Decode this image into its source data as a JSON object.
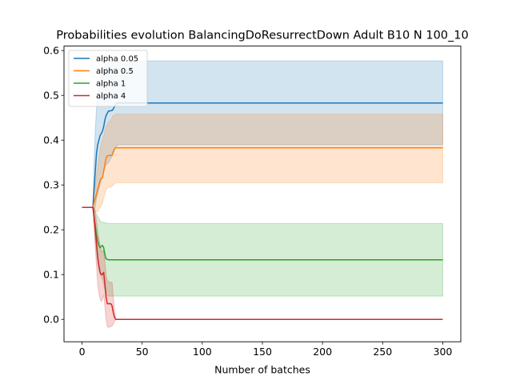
{
  "chart_data": {
    "type": "line",
    "title": "Probabilities evolution BalancingDoResurrectDown Adult B10 N 100_10",
    "xlabel": "Number of batches",
    "ylabel": "",
    "xlim": [
      -15,
      315
    ],
    "ylim": [
      -0.05,
      0.61
    ],
    "xticks": [
      0,
      50,
      100,
      150,
      200,
      250,
      300
    ],
    "yticks": [
      0.0,
      0.1,
      0.2,
      0.3,
      0.4,
      0.5,
      0.6
    ],
    "ytick_labels": [
      "0.0",
      "0.1",
      "0.2",
      "0.3",
      "0.4",
      "0.5",
      "0.6"
    ],
    "grid": false,
    "legend_position": "top-left",
    "series": [
      {
        "name": "alpha 0.05",
        "color": "#1f77b4",
        "mean": [
          [
            0,
            0.25
          ],
          [
            9,
            0.25
          ],
          [
            10,
            0.29
          ],
          [
            11,
            0.33
          ],
          [
            12,
            0.37
          ],
          [
            13,
            0.39
          ],
          [
            14,
            0.4
          ],
          [
            15,
            0.41
          ],
          [
            16,
            0.415
          ],
          [
            17,
            0.42
          ],
          [
            18,
            0.43
          ],
          [
            19,
            0.445
          ],
          [
            20,
            0.455
          ],
          [
            21,
            0.46
          ],
          [
            22,
            0.465
          ],
          [
            23,
            0.465
          ],
          [
            24,
            0.466
          ],
          [
            25,
            0.466
          ],
          [
            26,
            0.47
          ],
          [
            27,
            0.475
          ],
          [
            28,
            0.48
          ],
          [
            29,
            0.483
          ],
          [
            30,
            0.483
          ],
          [
            300,
            0.483
          ]
        ],
        "upper": [
          [
            0,
            0.25
          ],
          [
            9,
            0.25
          ],
          [
            10,
            0.35
          ],
          [
            11,
            0.42
          ],
          [
            12,
            0.47
          ],
          [
            13,
            0.5
          ],
          [
            14,
            0.52
          ],
          [
            15,
            0.535
          ],
          [
            16,
            0.545
          ],
          [
            17,
            0.552
          ],
          [
            18,
            0.56
          ],
          [
            19,
            0.565
          ],
          [
            20,
            0.57
          ],
          [
            22,
            0.573
          ],
          [
            25,
            0.575
          ],
          [
            28,
            0.577
          ],
          [
            300,
            0.577
          ]
        ],
        "lower": [
          [
            0,
            0.25
          ],
          [
            9,
            0.25
          ],
          [
            10,
            0.24
          ],
          [
            11,
            0.25
          ],
          [
            12,
            0.27
          ],
          [
            13,
            0.28
          ],
          [
            14,
            0.29
          ],
          [
            15,
            0.3
          ],
          [
            16,
            0.31
          ],
          [
            17,
            0.32
          ],
          [
            18,
            0.33
          ],
          [
            19,
            0.34
          ],
          [
            20,
            0.345
          ],
          [
            22,
            0.35
          ],
          [
            24,
            0.36
          ],
          [
            26,
            0.37
          ],
          [
            28,
            0.385
          ],
          [
            30,
            0.39
          ],
          [
            300,
            0.39
          ]
        ]
      },
      {
        "name": "alpha 0.5",
        "color": "#ff7f0e",
        "mean": [
          [
            0,
            0.25
          ],
          [
            9,
            0.25
          ],
          [
            10,
            0.26
          ],
          [
            11,
            0.27
          ],
          [
            12,
            0.28
          ],
          [
            13,
            0.29
          ],
          [
            14,
            0.3
          ],
          [
            15,
            0.31
          ],
          [
            16,
            0.315
          ],
          [
            17,
            0.316
          ],
          [
            18,
            0.33
          ],
          [
            19,
            0.345
          ],
          [
            20,
            0.36
          ],
          [
            21,
            0.365
          ],
          [
            23,
            0.366
          ],
          [
            25,
            0.366
          ],
          [
            26,
            0.375
          ],
          [
            27,
            0.38
          ],
          [
            28,
            0.383
          ],
          [
            300,
            0.383
          ]
        ],
        "upper": [
          [
            0,
            0.25
          ],
          [
            9,
            0.25
          ],
          [
            10,
            0.28
          ],
          [
            11,
            0.3
          ],
          [
            12,
            0.32
          ],
          [
            13,
            0.34
          ],
          [
            14,
            0.36
          ],
          [
            15,
            0.38
          ],
          [
            16,
            0.395
          ],
          [
            17,
            0.4
          ],
          [
            18,
            0.41
          ],
          [
            19,
            0.42
          ],
          [
            20,
            0.43
          ],
          [
            22,
            0.44
          ],
          [
            24,
            0.445
          ],
          [
            26,
            0.455
          ],
          [
            28,
            0.458
          ],
          [
            300,
            0.458
          ]
        ],
        "lower": [
          [
            0,
            0.25
          ],
          [
            9,
            0.25
          ],
          [
            10,
            0.24
          ],
          [
            11,
            0.24
          ],
          [
            12,
            0.24
          ],
          [
            13,
            0.24
          ],
          [
            14,
            0.245
          ],
          [
            15,
            0.25
          ],
          [
            16,
            0.255
          ],
          [
            17,
            0.26
          ],
          [
            18,
            0.27
          ],
          [
            19,
            0.28
          ],
          [
            20,
            0.29
          ],
          [
            22,
            0.295
          ],
          [
            24,
            0.295
          ],
          [
            26,
            0.3
          ],
          [
            28,
            0.305
          ],
          [
            300,
            0.305
          ]
        ]
      },
      {
        "name": "alpha 1",
        "color": "#2ca02c",
        "mean": [
          [
            0,
            0.25
          ],
          [
            9,
            0.25
          ],
          [
            10,
            0.23
          ],
          [
            11,
            0.21
          ],
          [
            12,
            0.19
          ],
          [
            13,
            0.175
          ],
          [
            14,
            0.165
          ],
          [
            15,
            0.16
          ],
          [
            16,
            0.163
          ],
          [
            17,
            0.165
          ],
          [
            18,
            0.16
          ],
          [
            19,
            0.145
          ],
          [
            20,
            0.135
          ],
          [
            22,
            0.133
          ],
          [
            300,
            0.133
          ]
        ],
        "upper": [
          [
            0,
            0.25
          ],
          [
            9,
            0.25
          ],
          [
            10,
            0.245
          ],
          [
            11,
            0.24
          ],
          [
            12,
            0.235
          ],
          [
            13,
            0.23
          ],
          [
            14,
            0.225
          ],
          [
            15,
            0.22
          ],
          [
            16,
            0.218
          ],
          [
            18,
            0.216
          ],
          [
            20,
            0.215
          ],
          [
            22,
            0.214
          ],
          [
            300,
            0.214
          ]
        ],
        "lower": [
          [
            0,
            0.25
          ],
          [
            9,
            0.25
          ],
          [
            10,
            0.21
          ],
          [
            11,
            0.18
          ],
          [
            12,
            0.15
          ],
          [
            13,
            0.125
          ],
          [
            14,
            0.11
          ],
          [
            15,
            0.1
          ],
          [
            16,
            0.095
          ],
          [
            17,
            0.09
          ],
          [
            18,
            0.08
          ],
          [
            19,
            0.065
          ],
          [
            20,
            0.055
          ],
          [
            22,
            0.052
          ],
          [
            300,
            0.052
          ]
        ]
      },
      {
        "name": "alpha 4",
        "color": "#d62728",
        "mean": [
          [
            0,
            0.25
          ],
          [
            9,
            0.25
          ],
          [
            10,
            0.23
          ],
          [
            11,
            0.2
          ],
          [
            12,
            0.17
          ],
          [
            13,
            0.14
          ],
          [
            14,
            0.12
          ],
          [
            15,
            0.105
          ],
          [
            16,
            0.1
          ],
          [
            17,
            0.1
          ],
          [
            18,
            0.105
          ],
          [
            19,
            0.08
          ],
          [
            20,
            0.05
          ],
          [
            21,
            0.035
          ],
          [
            24,
            0.035
          ],
          [
            25,
            0.03
          ],
          [
            26,
            0.015
          ],
          [
            27,
            0.005
          ],
          [
            28,
            0.0
          ],
          [
            300,
            0.0
          ]
        ],
        "upper": [
          [
            0,
            0.25
          ],
          [
            9,
            0.25
          ],
          [
            10,
            0.25
          ],
          [
            11,
            0.24
          ],
          [
            12,
            0.22
          ],
          [
            13,
            0.2
          ],
          [
            14,
            0.18
          ],
          [
            15,
            0.165
          ],
          [
            16,
            0.155
          ],
          [
            17,
            0.15
          ],
          [
            18,
            0.155
          ],
          [
            19,
            0.13
          ],
          [
            20,
            0.1
          ],
          [
            21,
            0.085
          ],
          [
            25,
            0.082
          ],
          [
            26,
            0.05
          ],
          [
            27,
            0.02
          ],
          [
            28,
            0.0
          ],
          [
            300,
            0.0
          ]
        ],
        "lower": [
          [
            0,
            0.25
          ],
          [
            9,
            0.25
          ],
          [
            10,
            0.21
          ],
          [
            11,
            0.16
          ],
          [
            12,
            0.12
          ],
          [
            13,
            0.08
          ],
          [
            14,
            0.06
          ],
          [
            15,
            0.045
          ],
          [
            16,
            0.04
          ],
          [
            17,
            0.045
          ],
          [
            18,
            0.055
          ],
          [
            19,
            0.03
          ],
          [
            20,
            0.0
          ],
          [
            21,
            -0.015
          ],
          [
            22,
            -0.018
          ],
          [
            25,
            -0.015
          ],
          [
            26,
            -0.01
          ],
          [
            27,
            -0.005
          ],
          [
            28,
            0.0
          ],
          [
            300,
            0.0
          ]
        ]
      }
    ]
  }
}
